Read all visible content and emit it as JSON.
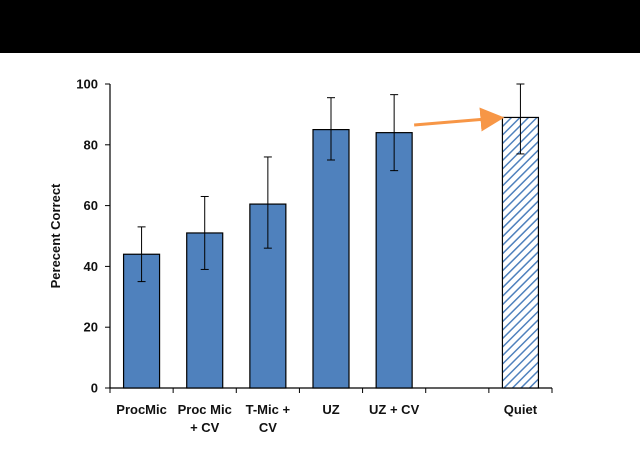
{
  "chart_data": {
    "type": "bar",
    "title": "",
    "xlabel": "",
    "ylabel": "Perecent Correct",
    "ylim": [
      0,
      100
    ],
    "yticks": [
      0,
      20,
      40,
      60,
      80,
      100
    ],
    "grid": false,
    "categories": [
      [
        "ProcMic"
      ],
      [
        "Proc Mic",
        "+ CV"
      ],
      [
        "T-Mic +",
        "CV"
      ],
      [
        "UZ"
      ],
      [
        "UZ + CV"
      ],
      [
        ""
      ],
      [
        "Quiet"
      ]
    ],
    "values": [
      44,
      51,
      60.5,
      85,
      84,
      null,
      89
    ],
    "error_low": [
      35,
      39,
      46,
      75,
      71.5,
      null,
      77
    ],
    "error_high": [
      53,
      63,
      76,
      95.5,
      96.5,
      null,
      100
    ],
    "bar_styles": [
      "solid",
      "solid",
      "solid",
      "solid",
      "solid",
      "none",
      "hatched"
    ],
    "colors": {
      "bar_fill": "#4f81bd",
      "bar_stroke": "#000000",
      "hatch": "#4f81bd",
      "arrow": "#f79646",
      "header": "#000000"
    },
    "annotations": [
      {
        "type": "arrow",
        "from_bar": 4,
        "to_bar": 6
      }
    ]
  }
}
